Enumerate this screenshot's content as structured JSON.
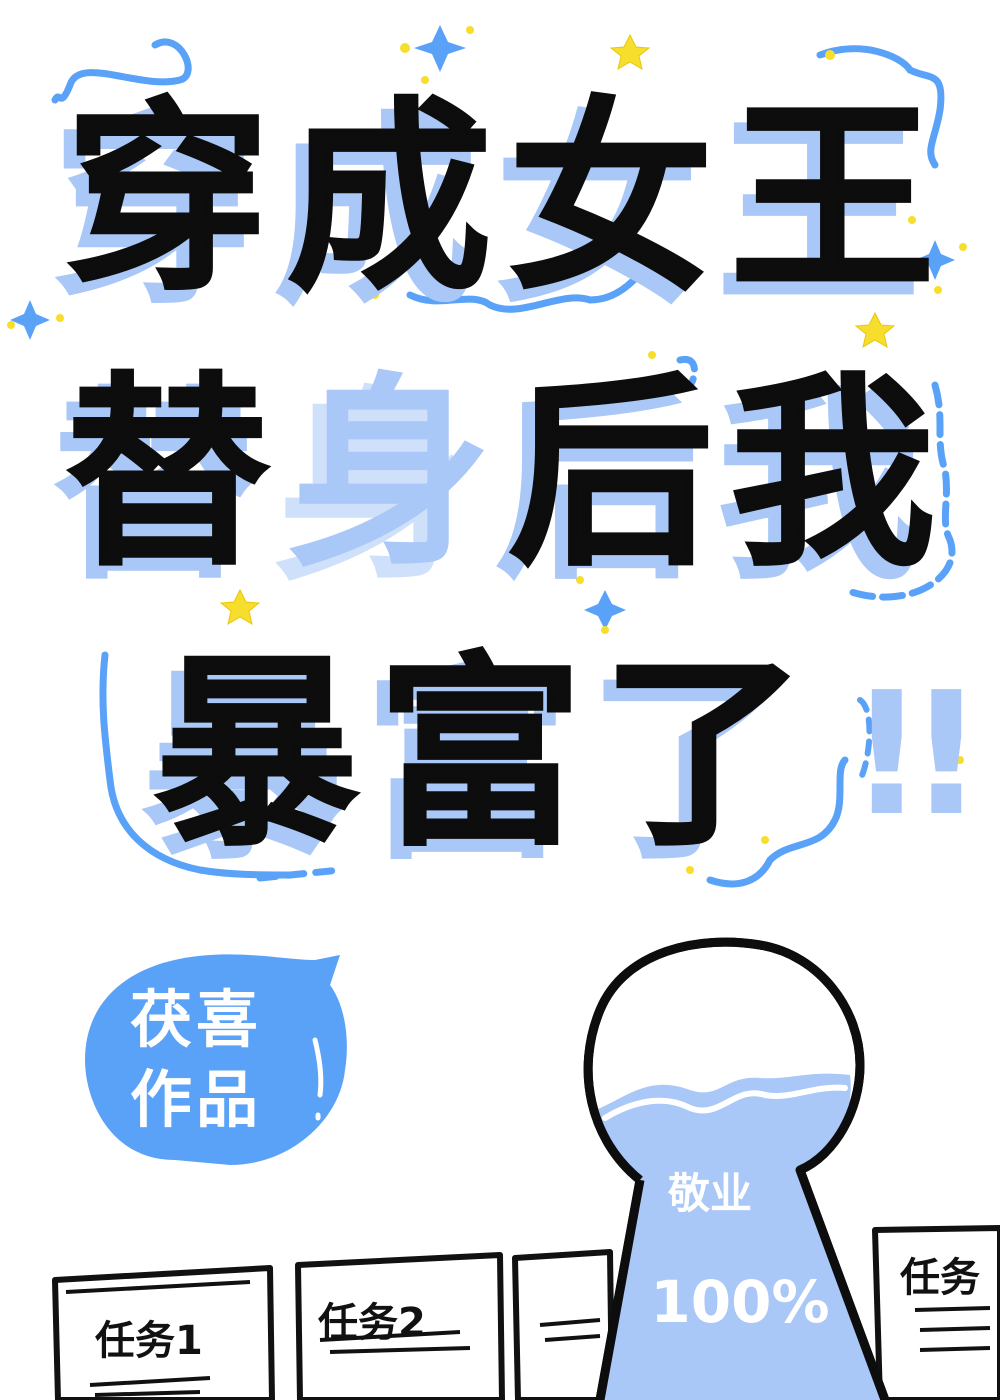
{
  "title": {
    "line1": [
      "穿",
      "成",
      "女",
      "王"
    ],
    "line2": [
      "替",
      "身",
      "后",
      "我"
    ],
    "line3": [
      "暴",
      "富",
      "了"
    ],
    "exclaim": "!!"
  },
  "author_bubble": {
    "line1": "茯喜",
    "line2": "作品"
  },
  "flask": {
    "label_top": "敬业",
    "label_percent": "100%"
  },
  "task_cards": [
    {
      "text": "任务1"
    },
    {
      "text": "任务2"
    },
    {
      "text": ""
    },
    {
      "text": "任务"
    }
  ],
  "colors": {
    "accent_blue": "#5aa2f7",
    "light_blue": "#a9c7f7",
    "star_yellow": "#f7de2c",
    "ink": "#0d0d0d"
  }
}
